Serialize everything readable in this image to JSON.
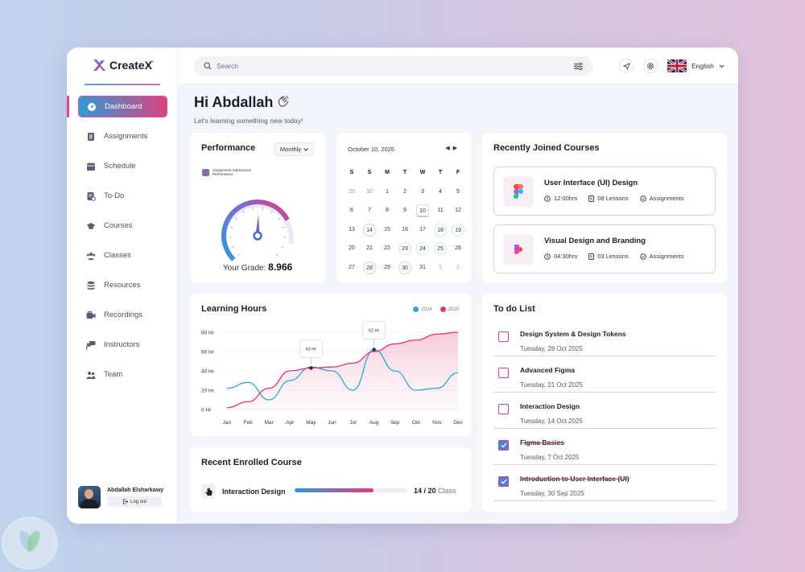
{
  "app": {
    "name": "CreateX",
    "tm": "™"
  },
  "sidebar": {
    "items": [
      {
        "label": "Dashboard",
        "icon": "dashboard-icon"
      },
      {
        "label": "Assignments",
        "icon": "assignment-icon"
      },
      {
        "label": "Schedule",
        "icon": "calendar-icon"
      },
      {
        "label": "To-Do",
        "icon": "todo-icon"
      },
      {
        "label": "Courses",
        "icon": "graduation-cap-icon"
      },
      {
        "label": "Classes",
        "icon": "group-icon"
      },
      {
        "label": "Resources",
        "icon": "database-icon"
      },
      {
        "label": "Recordings",
        "icon": "video-icon"
      },
      {
        "label": "Instructors",
        "icon": "instructor-icon"
      },
      {
        "label": "Team",
        "icon": "team-icon"
      }
    ]
  },
  "user": {
    "name": "Abdallah Elsharkawy",
    "logout": "Log out"
  },
  "header": {
    "search_placeholder": "Search",
    "language": "English"
  },
  "greeting": {
    "title": "Hi Abdallah",
    "subtitle": "Let's learning something new today!"
  },
  "performance": {
    "title": "Performance",
    "period": "Monthly",
    "legend": "Assignment Submission Performance",
    "grade_label": "Your Grade:",
    "grade_value": "8.966",
    "gauge_fraction": 0.73
  },
  "calendar": {
    "date": "October 10, 2025",
    "days": [
      "S",
      "S",
      "M",
      "T",
      "W",
      "T",
      "F"
    ],
    "weeks": [
      [
        "29",
        "30",
        "1",
        "2",
        "3",
        "4",
        "5"
      ],
      [
        "6",
        "7",
        "8",
        "9",
        "10",
        "11",
        "12"
      ],
      [
        "13",
        "14",
        "15",
        "16",
        "17",
        "18",
        "19"
      ],
      [
        "20",
        "21",
        "22",
        "23",
        "24",
        "25",
        "26"
      ],
      [
        "27",
        "28",
        "29",
        "30",
        "31",
        "1",
        "2"
      ]
    ]
  },
  "recent_courses": {
    "title": "Recently Joined Courses",
    "items": [
      {
        "name": "User Interface (UI) Design",
        "hours": "12:00hrs",
        "lessons": "08 Lessons",
        "assign": "Assignments",
        "icon": "figma-icon"
      },
      {
        "name": "Visual Design and Branding",
        "hours": "04:30hrs",
        "lessons": "03 Lessons",
        "assign": "Assignments",
        "icon": "framer-icon"
      }
    ]
  },
  "learning": {
    "title": "Learning Hours",
    "legend": [
      "2024",
      "2025"
    ],
    "colors": [
      "#2aa6dc",
      "#e8336e"
    ]
  },
  "chart_data": {
    "type": "line",
    "categories": [
      "Jan",
      "Feb",
      "Mar",
      "Apr",
      "May",
      "Jun",
      "Jul",
      "Aug",
      "Sep",
      "Oct",
      "Nov",
      "Dec"
    ],
    "yticks": [
      "80 Hr",
      "60 Hr",
      "40 Hr",
      "20 Hr",
      "0 Hr"
    ],
    "ylim": [
      0,
      80
    ],
    "series": [
      {
        "name": "2024",
        "values": [
          22,
          28,
          10,
          30,
          44,
          40,
          20,
          62,
          40,
          20,
          22,
          38
        ]
      },
      {
        "name": "2025",
        "values": [
          2,
          8,
          22,
          40,
          43,
          44,
          48,
          60,
          68,
          72,
          78,
          80
        ]
      }
    ],
    "annotations": [
      {
        "text": "43 Hr",
        "series": "2025",
        "x": "May"
      },
      {
        "text": "62 Hr",
        "series": "2024",
        "x": "Aug"
      }
    ]
  },
  "recent_enrolled": {
    "title": "Recent Enrolled Course",
    "course": "Interaction Design",
    "progress_text": "14 / 20",
    "unit": "Class",
    "progress": 0.7
  },
  "todo": {
    "title": "To do List",
    "items": [
      {
        "name": "Design System & Design Tokens",
        "date": "Tuesday, 28 Oct 2025",
        "done": false
      },
      {
        "name": "Advanced Figma",
        "date": "Tuesday, 21 Oct 2025",
        "done": false
      },
      {
        "name": "Interaction Design",
        "date": "Tuesday, 14 Oct 2025",
        "done": false
      },
      {
        "name": "Figma Basics",
        "date": "Tuesday, 7 Oct 2025",
        "done": true
      },
      {
        "name": "Introduction to User Interface (UI)",
        "date": "Tuesday, 30 Sep 2025",
        "done": true
      }
    ]
  }
}
